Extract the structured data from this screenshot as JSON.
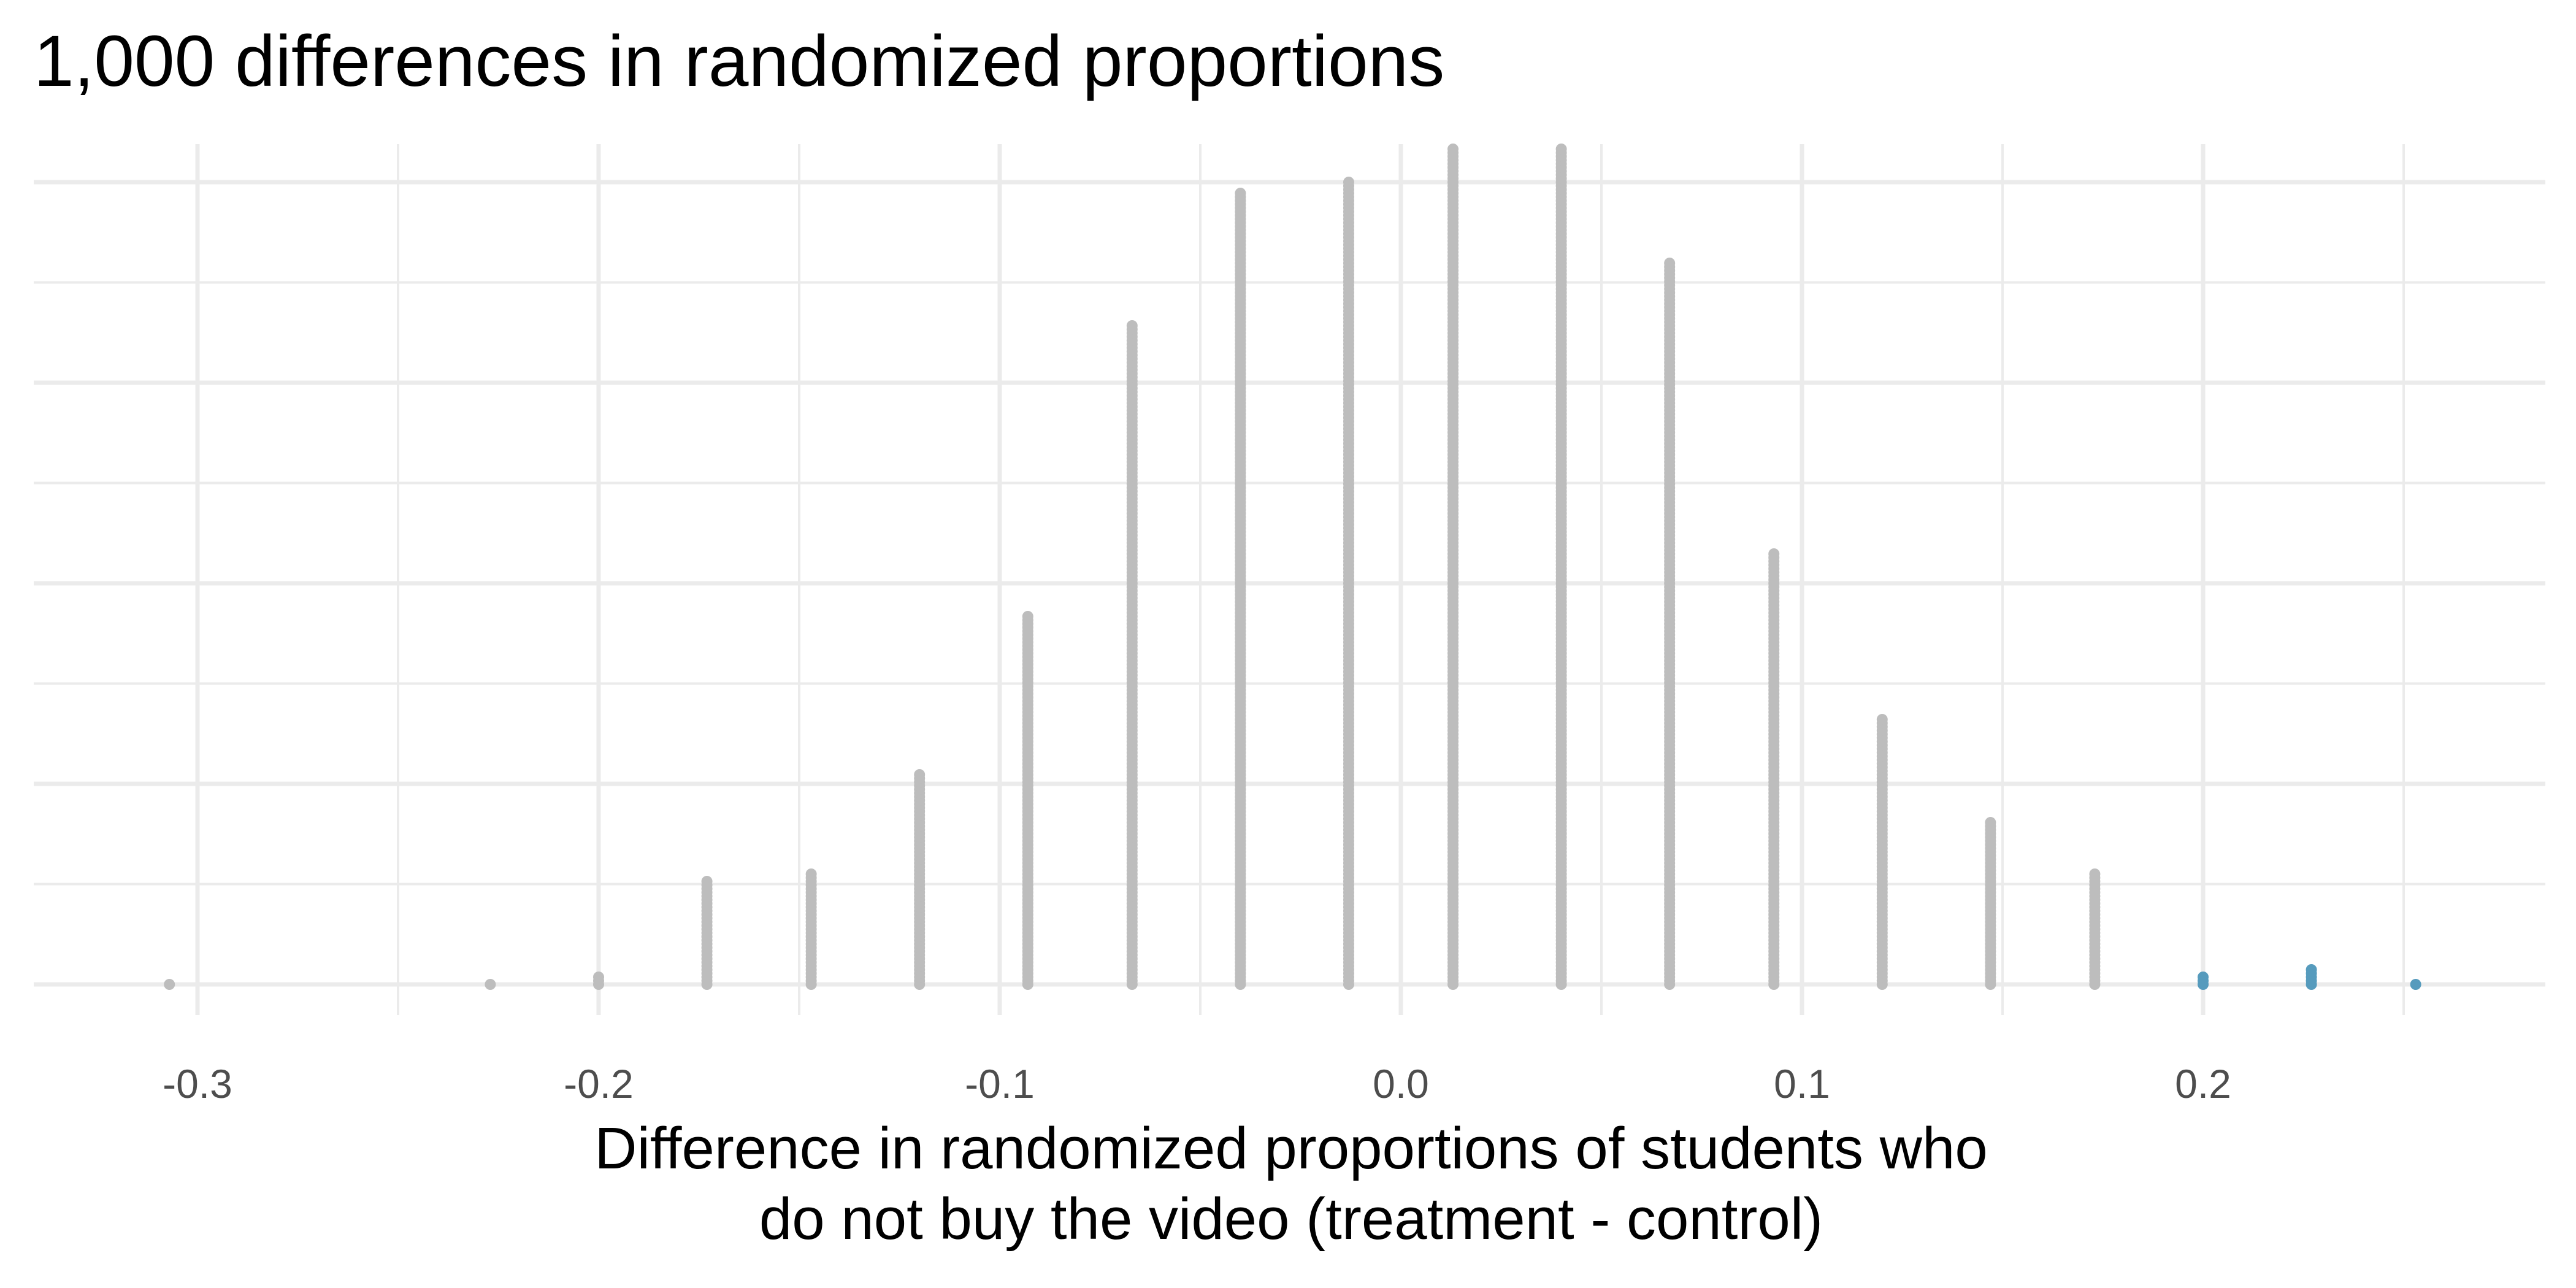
{
  "chart_data": {
    "type": "dotplot",
    "title": "1,000 differences in randomized proportions",
    "xlabel": "Difference in randomized proportions of students who do not buy the video (treatment - control)",
    "xlabel_lines": [
      "Difference in randomized proportions of students who",
      "do not buy the video (treatment - control)"
    ],
    "ylabel": "",
    "xlim": [
      -0.34,
      0.28
    ],
    "ylim": [
      0,
      1
    ],
    "x_ticks": [
      -0.3,
      -0.2,
      -0.1,
      0.0,
      0.1,
      0.2
    ],
    "x_tick_labels": [
      "-0.3",
      "-0.2",
      "-0.1",
      "0.0",
      "0.1",
      "0.2"
    ],
    "grid": true,
    "y_tick_labels_shown": false,
    "colors": {
      "background": "#ffffff",
      "gridline": "#ebebeb",
      "dot_default": "#bdbdbd",
      "dot_highlight": "#569bbd",
      "tick_text": "#4d4d4d",
      "title_text": "#000000"
    },
    "series": [
      {
        "name": "",
        "color": "#bdbdbd",
        "points": [
          {
            "x": -0.307,
            "y": 0.003
          },
          {
            "x": -0.227,
            "y": 0.003
          },
          {
            "x": -0.2,
            "y": 0.011
          },
          {
            "x": -0.173,
            "y": 0.131
          },
          {
            "x": -0.147,
            "y": 0.141
          },
          {
            "x": -0.12,
            "y": 0.265
          },
          {
            "x": -0.093,
            "y": 0.46
          },
          {
            "x": -0.067,
            "y": 0.822
          },
          {
            "x": -0.04,
            "y": 0.985
          },
          {
            "x": -0.013,
            "y": 1.0
          },
          {
            "x": 0.013,
            "y": 1.04
          },
          {
            "x": 0.04,
            "y": 1.04
          },
          {
            "x": 0.067,
            "y": 0.9
          },
          {
            "x": 0.093,
            "y": 0.54
          },
          {
            "x": 0.12,
            "y": 0.33
          },
          {
            "x": 0.147,
            "y": 0.205
          },
          {
            "x": 0.173,
            "y": 0.138
          }
        ]
      },
      {
        "name": "",
        "color": "#569bbd",
        "points": [
          {
            "x": 0.2,
            "y": 0.011
          },
          {
            "x": 0.227,
            "y": 0.019
          },
          {
            "x": 0.253,
            "y": 0.003
          }
        ]
      }
    ]
  }
}
